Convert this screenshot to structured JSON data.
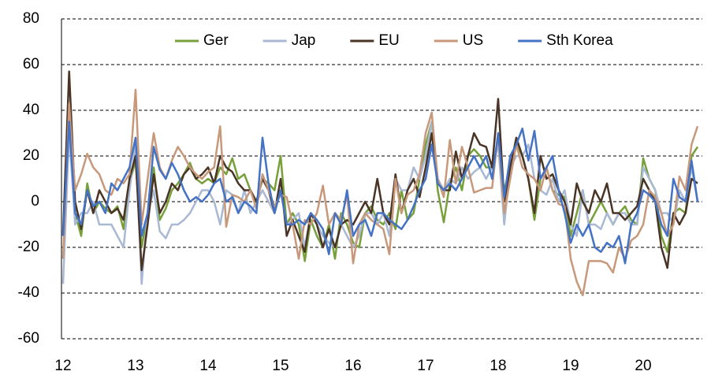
{
  "chart_data": {
    "type": "line",
    "categories": [
      "12",
      null,
      null,
      null,
      null,
      null,
      null,
      null,
      null,
      null,
      null,
      null,
      "13",
      null,
      null,
      null,
      null,
      null,
      null,
      null,
      null,
      null,
      null,
      null,
      "14",
      null,
      null,
      null,
      null,
      null,
      null,
      null,
      null,
      null,
      null,
      null,
      "15",
      null,
      null,
      null,
      null,
      null,
      null,
      null,
      null,
      null,
      null,
      null,
      "16",
      null,
      null,
      null,
      null,
      null,
      null,
      null,
      null,
      null,
      null,
      null,
      "17",
      null,
      null,
      null,
      null,
      null,
      null,
      null,
      null,
      null,
      null,
      null,
      "18",
      null,
      null,
      null,
      null,
      null,
      null,
      null,
      null,
      null,
      null,
      null,
      "19",
      null,
      null,
      null,
      null,
      null,
      null,
      null,
      null,
      null,
      null,
      null,
      "20",
      null,
      null,
      null,
      null,
      null,
      null,
      null,
      null,
      null
    ],
    "series": [
      {
        "name": "Ger",
        "color": "#77a03a",
        "values": [
          -15,
          35,
          -5,
          -15,
          8,
          -5,
          0,
          -3,
          -5,
          -2,
          -12,
          8,
          18,
          -20,
          -5,
          15,
          -8,
          -3,
          5,
          8,
          12,
          17,
          10,
          8,
          10,
          8,
          15,
          12,
          19,
          10,
          12,
          5,
          0,
          10,
          8,
          5,
          20,
          -10,
          -5,
          -10,
          -26,
          -8,
          -15,
          -20,
          -10,
          -25,
          -5,
          -10,
          -18,
          -20,
          -5,
          -2,
          -8,
          -10,
          -5,
          -12,
          5,
          -8,
          -5,
          10,
          25,
          35,
          5,
          -9,
          8,
          15,
          5,
          20,
          23,
          20,
          15,
          15,
          25,
          5,
          15,
          25,
          20,
          10,
          -8,
          10,
          15,
          5,
          3,
          2,
          -15,
          -5,
          5,
          -10,
          -5,
          0,
          -5,
          -10,
          -5,
          -2,
          -8,
          -10,
          19,
          10,
          5,
          -15,
          -22,
          -5,
          -3,
          -5,
          20,
          24
        ]
      },
      {
        "name": "Jap",
        "color": "#a9b8d3",
        "values": [
          -36,
          30,
          -10,
          -5,
          -5,
          0,
          -10,
          -10,
          -10,
          -15,
          -20,
          5,
          25,
          -36,
          -5,
          5,
          -13,
          -16,
          -10,
          -10,
          -8,
          -5,
          0,
          5,
          5,
          0,
          -10,
          5,
          3,
          -5,
          5,
          -5,
          0,
          5,
          0,
          -5,
          5,
          -10,
          -8,
          -5,
          -20,
          -5,
          -10,
          -15,
          -18,
          -20,
          -10,
          -15,
          -20,
          -15,
          -5,
          -5,
          -10,
          -5,
          -15,
          10,
          5,
          5,
          15,
          10,
          20,
          35,
          10,
          5,
          10,
          8,
          15,
          10,
          13,
          15,
          10,
          15,
          25,
          -10,
          15,
          20,
          20,
          25,
          10,
          5,
          3,
          10,
          0,
          5,
          -10,
          -15,
          5,
          -10,
          -10,
          -12,
          -5,
          -10,
          -5,
          -5,
          -10,
          -10,
          15,
          10,
          5,
          -5,
          -5,
          -10,
          5,
          0,
          15,
          0
        ]
      },
      {
        "name": "EU",
        "color": "#4a3426",
        "values": [
          -14,
          57,
          0,
          -12,
          5,
          -5,
          5,
          0,
          -5,
          -3,
          -8,
          10,
          20,
          -30,
          -10,
          12,
          -5,
          0,
          8,
          5,
          12,
          15,
          10,
          12,
          15,
          8,
          20,
          15,
          13,
          8,
          5,
          5,
          0,
          10,
          5,
          -5,
          10,
          -15,
          -8,
          -15,
          -22,
          -5,
          -10,
          -20,
          -12,
          -20,
          -10,
          -8,
          -10,
          -5,
          0,
          -5,
          10,
          -5,
          -10,
          12,
          -5,
          5,
          10,
          2,
          15,
          30,
          8,
          5,
          5,
          22,
          10,
          20,
          30,
          25,
          24,
          15,
          45,
          0,
          15,
          28,
          20,
          10,
          -5,
          20,
          10,
          12,
          5,
          0,
          -10,
          8,
          0,
          -5,
          5,
          0,
          8,
          -5,
          -5,
          -8,
          -5,
          -2,
          10,
          5,
          0,
          -20,
          -29,
          -5,
          -10,
          -5,
          10,
          8
        ]
      },
      {
        "name": "US",
        "color": "#c8987a",
        "values": [
          -25,
          43,
          5,
          12,
          21,
          15,
          12,
          5,
          3,
          10,
          8,
          12,
          49,
          -10,
          10,
          30,
          15,
          10,
          18,
          24,
          20,
          15,
          12,
          10,
          13,
          15,
          33,
          -11,
          3,
          2,
          0,
          5,
          -3,
          12,
          5,
          -2,
          3,
          2,
          -10,
          -25,
          -8,
          -10,
          -5,
          7,
          -10,
          -5,
          -8,
          3,
          -27,
          -10,
          -5,
          -8,
          -10,
          -12,
          -23,
          10,
          -5,
          3,
          5,
          12,
          30,
          39,
          10,
          2,
          27,
          8,
          24,
          15,
          4,
          5,
          6,
          6,
          30,
          -5,
          10,
          25,
          15,
          12,
          10,
          5,
          15,
          5,
          -1,
          -2,
          -25,
          -35,
          -41,
          -26,
          -26,
          -26,
          -27,
          -31,
          -20,
          -25,
          -17,
          -15,
          -10,
          5,
          2,
          -5,
          -15,
          -10,
          11,
          5,
          25,
          33
        ]
      },
      {
        "name": "Sth Korea",
        "color": "#4472c4",
        "values": [
          -15,
          35,
          -5,
          -10,
          5,
          -2,
          0,
          -5,
          8,
          5,
          10,
          15,
          28,
          -15,
          -5,
          24,
          14,
          10,
          17,
          12,
          5,
          0,
          2,
          0,
          3,
          8,
          10,
          0,
          2,
          -5,
          0,
          -2,
          -5,
          28,
          8,
          -5,
          5,
          -10,
          -10,
          -8,
          -10,
          -5,
          -8,
          -12,
          -23,
          -5,
          -10,
          5,
          -15,
          -10,
          -8,
          -15,
          -5,
          -5,
          -8,
          -10,
          -12,
          -8,
          -2,
          5,
          10,
          25,
          8,
          5,
          8,
          5,
          10,
          15,
          20,
          15,
          20,
          10,
          30,
          2,
          20,
          25,
          32,
          18,
          31,
          10,
          15,
          20,
          5,
          -5,
          -18,
          -10,
          -15,
          -10,
          -20,
          -22,
          -18,
          -20,
          -15,
          -27,
          -10,
          -5,
          5,
          3,
          0,
          -10,
          -15,
          10,
          2,
          0,
          18,
          0
        ]
      }
    ],
    "ylim": [
      -60,
      80
    ],
    "yticks": [
      -60,
      -40,
      -20,
      0,
      20,
      40,
      60,
      80
    ],
    "grid": true,
    "legend": "top"
  }
}
